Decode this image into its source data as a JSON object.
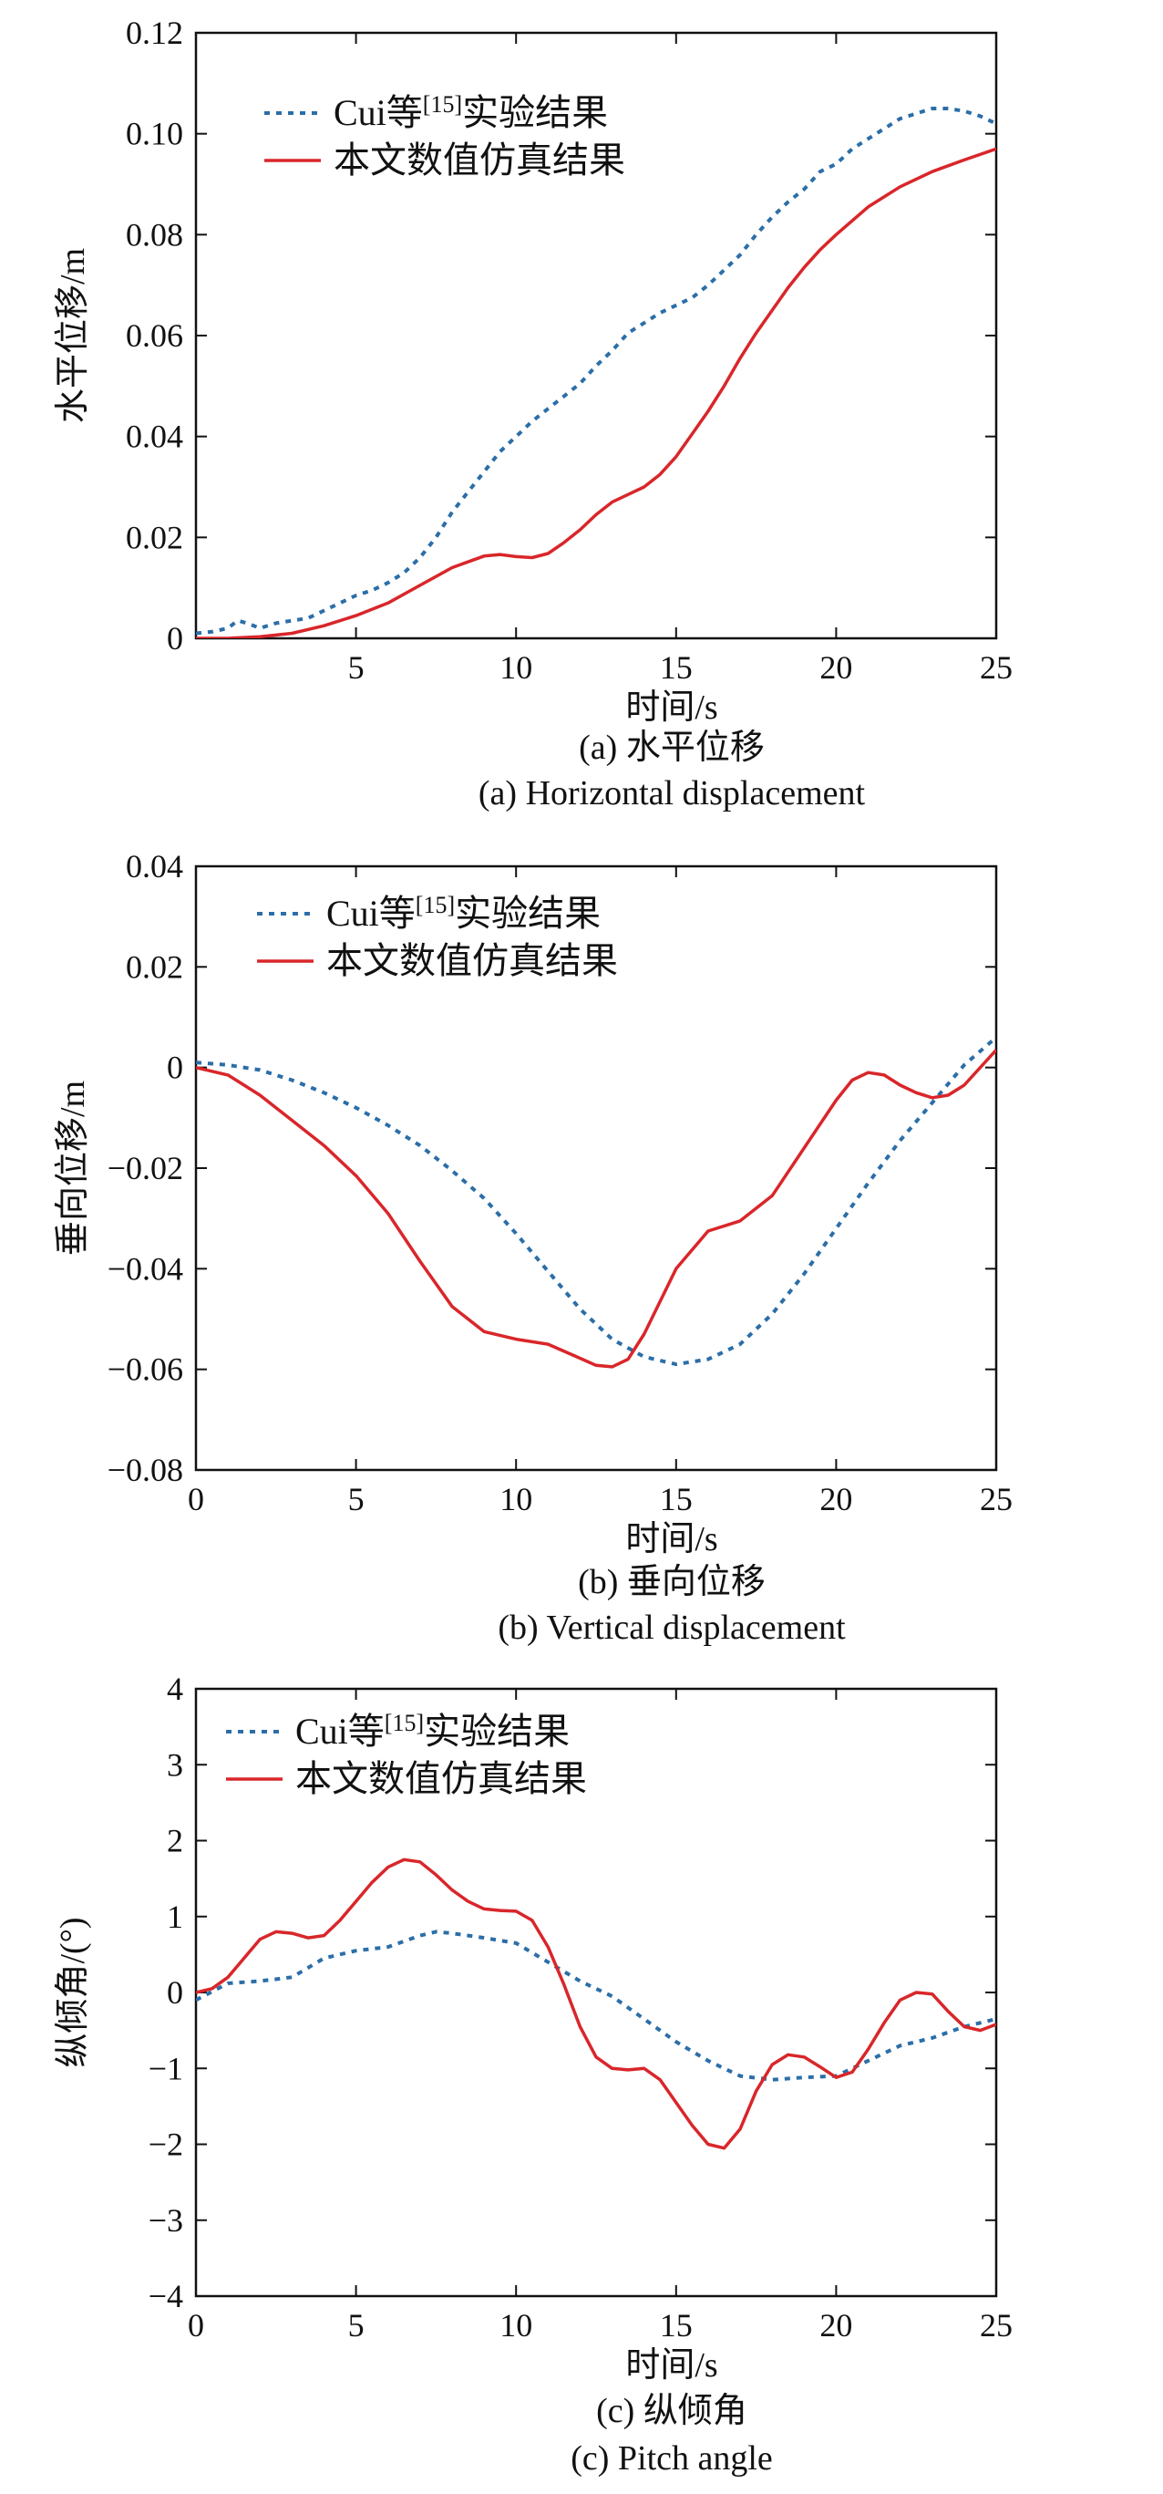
{
  "colors": {
    "exp": "#2b6ea8",
    "sim": "#d9262a",
    "axis": "#111111"
  },
  "chart_data": [
    {
      "type": "line",
      "panel": "a",
      "ylabel": "水平位移/m",
      "xlabel": "时间/s",
      "caption_cn": "(a) 水平位移",
      "caption_en": "(a) Horizontal displacement",
      "xlim": [
        0,
        25
      ],
      "ylim": [
        0,
        0.12
      ],
      "xticks": [
        5,
        10,
        15,
        20,
        25
      ],
      "yticks": [
        0,
        0.02,
        0.04,
        0.06,
        0.08,
        0.1,
        0.12
      ],
      "ytick_labels": [
        "0",
        "0.02",
        "0.04",
        "0.06",
        "0.08",
        "0.10",
        "0.12"
      ],
      "xtick_labels": [
        "5",
        "10",
        "15",
        "20",
        "25"
      ],
      "legend": {
        "placement": "top-left",
        "exp_prefix": "Cui等",
        "exp_ref": "[15]",
        "exp_suffix": "实验结果",
        "sim_label": "本文数值仿真结果"
      },
      "series": [
        {
          "key": "exp",
          "style": "dotted",
          "x": [
            0,
            0.5,
            1,
            1.3,
            1.6,
            2,
            2.5,
            3,
            3.5,
            4,
            4.5,
            5,
            5.5,
            6,
            6.5,
            7,
            7.5,
            8,
            8.5,
            9,
            9.5,
            10,
            10.5,
            11,
            11.5,
            12,
            12.5,
            13,
            13.5,
            14,
            14.5,
            15,
            15.5,
            16,
            16.5,
            17,
            17.5,
            18,
            18.5,
            19,
            19.5,
            20,
            20.5,
            21,
            21.5,
            22,
            22.5,
            23,
            23.5,
            24,
            24.5,
            25
          ],
          "y": [
            0.001,
            0.0013,
            0.002,
            0.0035,
            0.003,
            0.002,
            0.003,
            0.0035,
            0.004,
            0.0055,
            0.007,
            0.0085,
            0.0095,
            0.011,
            0.013,
            0.016,
            0.02,
            0.025,
            0.029,
            0.033,
            0.037,
            0.04,
            0.043,
            0.0455,
            0.048,
            0.0505,
            0.054,
            0.057,
            0.0605,
            0.0625,
            0.0645,
            0.066,
            0.0675,
            0.07,
            0.073,
            0.076,
            0.08,
            0.0835,
            0.0865,
            0.089,
            0.0925,
            0.094,
            0.097,
            0.099,
            0.101,
            0.103,
            0.104,
            0.105,
            0.105,
            0.1045,
            0.1035,
            0.102
          ]
        },
        {
          "key": "sim",
          "style": "solid",
          "x": [
            0,
            1,
            2,
            3,
            4,
            5,
            6,
            7,
            8,
            9,
            9.5,
            10,
            10.5,
            11,
            11.5,
            12,
            12.5,
            13,
            13.5,
            14,
            14.5,
            15,
            15.5,
            16,
            16.5,
            17,
            17.5,
            18,
            18.5,
            19,
            19.5,
            20,
            21,
            22,
            23,
            24,
            25
          ],
          "y": [
            0,
            0,
            0.0003,
            0.001,
            0.0025,
            0.0045,
            0.007,
            0.0105,
            0.014,
            0.0163,
            0.0166,
            0.0162,
            0.016,
            0.0168,
            0.019,
            0.0215,
            0.0245,
            0.027,
            0.0285,
            0.03,
            0.0325,
            0.036,
            0.0405,
            0.045,
            0.05,
            0.0555,
            0.0605,
            0.065,
            0.0695,
            0.0735,
            0.077,
            0.08,
            0.0855,
            0.0895,
            0.0925,
            0.0948,
            0.097
          ]
        }
      ]
    },
    {
      "type": "line",
      "panel": "b",
      "ylabel": "垂向位移/m",
      "xlabel": "时间/s",
      "caption_cn": "(b) 垂向位移",
      "caption_en": "(b) Vertical displacement",
      "xlim": [
        0,
        25
      ],
      "ylim": [
        -0.08,
        0.04
      ],
      "xticks": [
        0,
        5,
        10,
        15,
        20,
        25
      ],
      "yticks": [
        -0.08,
        -0.06,
        -0.04,
        -0.02,
        0,
        0.02,
        0.04
      ],
      "ytick_labels": [
        "−0.08",
        "−0.06",
        "−0.04",
        "−0.02",
        "0",
        "0.02",
        "0.04"
      ],
      "xtick_labels": [
        "0",
        "5",
        "10",
        "15",
        "20",
        "25"
      ],
      "legend": {
        "placement": "top-left",
        "exp_prefix": "Cui等",
        "exp_ref": "[15]",
        "exp_suffix": "实验结果",
        "sim_label": "本文数值仿真结果"
      },
      "series": [
        {
          "key": "exp",
          "style": "dotted",
          "x": [
            0,
            1,
            2,
            3,
            4,
            5,
            6,
            7,
            8,
            9,
            10,
            11,
            12,
            13,
            14,
            15,
            16,
            17,
            18,
            19,
            20,
            21,
            22,
            23,
            24,
            25
          ],
          "y": [
            0.001,
            0.0005,
            -0.0005,
            -0.0025,
            -0.005,
            -0.008,
            -0.0115,
            -0.0155,
            -0.0205,
            -0.026,
            -0.033,
            -0.0405,
            -0.048,
            -0.054,
            -0.0575,
            -0.059,
            -0.058,
            -0.055,
            -0.049,
            -0.041,
            -0.032,
            -0.023,
            -0.0145,
            -0.007,
            0.0005,
            0.006
          ]
        },
        {
          "key": "sim",
          "style": "solid",
          "x": [
            0,
            1,
            2,
            3,
            4,
            5,
            6,
            7,
            8,
            9,
            10,
            11,
            12,
            12.5,
            13,
            13.5,
            14,
            15,
            16,
            17,
            18,
            19,
            20,
            20.5,
            21,
            21.5,
            22,
            22.5,
            23,
            23.5,
            24,
            25
          ],
          "y": [
            0,
            -0.0015,
            -0.0055,
            -0.0105,
            -0.0155,
            -0.0215,
            -0.029,
            -0.0385,
            -0.0475,
            -0.0525,
            -0.054,
            -0.055,
            -0.0578,
            -0.0592,
            -0.0595,
            -0.058,
            -0.053,
            -0.04,
            -0.0325,
            -0.0305,
            -0.0255,
            -0.016,
            -0.0065,
            -0.0025,
            -0.001,
            -0.0015,
            -0.0035,
            -0.005,
            -0.006,
            -0.0055,
            -0.0035,
            0.0035
          ]
        }
      ]
    },
    {
      "type": "line",
      "panel": "c",
      "ylabel": "纵倾角/(°)",
      "xlabel": "时间/s",
      "caption_cn": "(c) 纵倾角",
      "caption_en": "(c) Pitch angle",
      "xlim": [
        0,
        25
      ],
      "ylim": [
        -4,
        4
      ],
      "xticks": [
        0,
        5,
        10,
        15,
        20,
        25
      ],
      "yticks": [
        -4,
        -3,
        -2,
        -1,
        0,
        1,
        2,
        3,
        4
      ],
      "ytick_labels": [
        "−4",
        "−3",
        "−2",
        "−1",
        "0",
        "1",
        "2",
        "3",
        "4"
      ],
      "xtick_labels": [
        "0",
        "5",
        "10",
        "15",
        "20",
        "25"
      ],
      "legend": {
        "placement": "top-left",
        "exp_prefix": "Cui等",
        "exp_ref": "[15]",
        "exp_suffix": "实验结果",
        "sim_label": "本文数值仿真结果"
      },
      "series": [
        {
          "key": "exp",
          "style": "dotted",
          "x": [
            0,
            1,
            2,
            3,
            4,
            5,
            6,
            7,
            7.5,
            8,
            9,
            10,
            11,
            12,
            13,
            14,
            15,
            16,
            17,
            18,
            19,
            20,
            21,
            22,
            23,
            24,
            25
          ],
          "y": [
            -0.1,
            0.12,
            0.15,
            0.2,
            0.45,
            0.55,
            0.6,
            0.75,
            0.8,
            0.78,
            0.72,
            0.65,
            0.4,
            0.15,
            -0.05,
            -0.35,
            -0.65,
            -0.9,
            -1.1,
            -1.15,
            -1.12,
            -1.1,
            -0.9,
            -0.7,
            -0.6,
            -0.45,
            -0.35
          ]
        },
        {
          "key": "sim",
          "style": "solid",
          "x": [
            0,
            0.5,
            1,
            1.5,
            2,
            2.5,
            3,
            3.5,
            4,
            4.5,
            5,
            5.5,
            6,
            6.5,
            7,
            7.5,
            8,
            8.5,
            9,
            9.5,
            10,
            10.5,
            11,
            11.5,
            12,
            12.5,
            13,
            13.5,
            14,
            14.5,
            15,
            15.5,
            16,
            16.5,
            17,
            17.5,
            18,
            18.5,
            19,
            19.5,
            20,
            20.5,
            21,
            21.5,
            22,
            22.5,
            23,
            23.5,
            24,
            24.5,
            25
          ],
          "y": [
            0,
            0.05,
            0.2,
            0.45,
            0.7,
            0.8,
            0.78,
            0.72,
            0.75,
            0.95,
            1.2,
            1.45,
            1.65,
            1.75,
            1.72,
            1.55,
            1.35,
            1.2,
            1.1,
            1.08,
            1.07,
            0.95,
            0.6,
            0.1,
            -0.45,
            -0.85,
            -1.0,
            -1.02,
            -1.0,
            -1.15,
            -1.45,
            -1.75,
            -2.0,
            -2.05,
            -1.8,
            -1.3,
            -0.95,
            -0.82,
            -0.85,
            -0.98,
            -1.12,
            -1.05,
            -0.75,
            -0.4,
            -0.1,
            0.0,
            -0.02,
            -0.25,
            -0.45,
            -0.5,
            -0.42
          ]
        }
      ]
    }
  ]
}
